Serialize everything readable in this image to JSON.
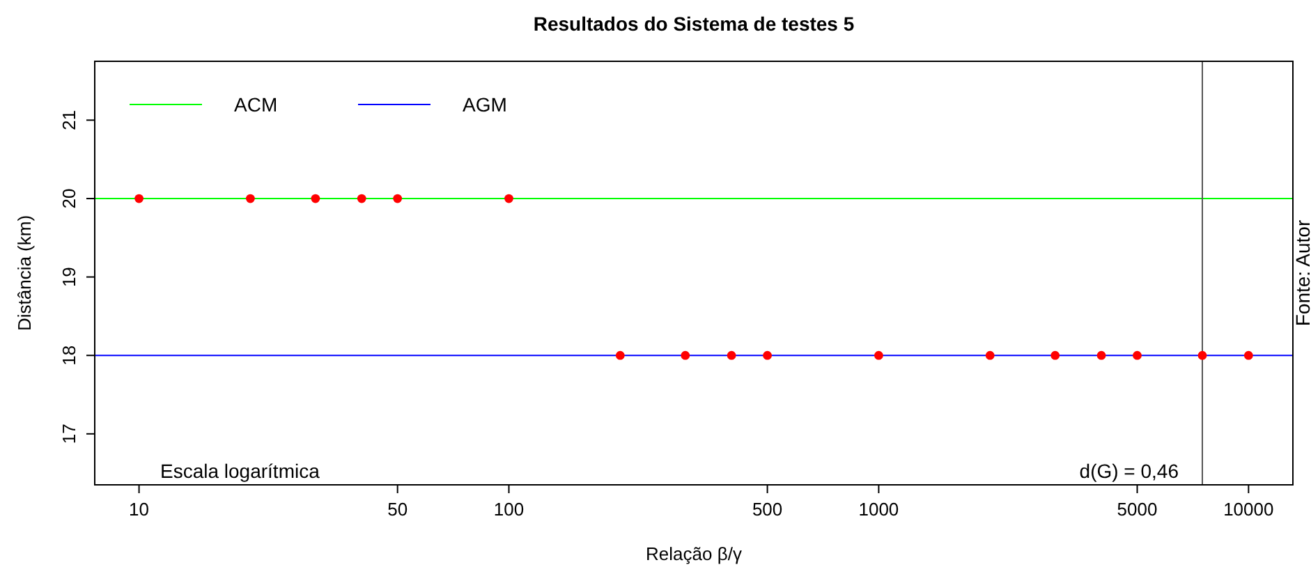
{
  "chart_data": {
    "type": "scatter",
    "title": "Resultados do Sistema de testes 5",
    "xlabel": "Relação  β/γ",
    "ylabel": "Distância (km)",
    "log": "x",
    "xlim": [
      7.59,
      13180
    ],
    "xticks": [
      10,
      50,
      100,
      500,
      1000,
      5000,
      10000
    ],
    "ylim": [
      16.35,
      21.75
    ],
    "yticks": [
      17,
      18,
      19,
      20,
      21
    ],
    "grid": false,
    "legend": "top left",
    "marker": "circle",
    "series": [
      {
        "color": "#ff0000",
        "x": [
          10,
          20,
          30,
          40,
          50,
          100,
          200,
          300,
          400,
          500,
          1000,
          2000,
          3000,
          4000,
          5000,
          7500,
          10000
        ],
        "values": [
          20,
          20,
          20,
          20,
          20,
          20,
          18,
          18,
          18,
          18,
          18,
          18,
          18,
          18,
          18,
          18,
          18
        ]
      }
    ],
    "ref_lines": [
      {
        "axis": "y",
        "value": 20,
        "label": "ACM",
        "color": "#00ff00"
      },
      {
        "axis": "y",
        "value": 18,
        "label": "AGM",
        "color": "#0000ff"
      },
      {
        "axis": "x",
        "value": 7500,
        "color": "#555555"
      }
    ],
    "annotations": [
      "Escala logarítmica",
      "d(G) = 0,46",
      "Fonte: Autor"
    ]
  }
}
